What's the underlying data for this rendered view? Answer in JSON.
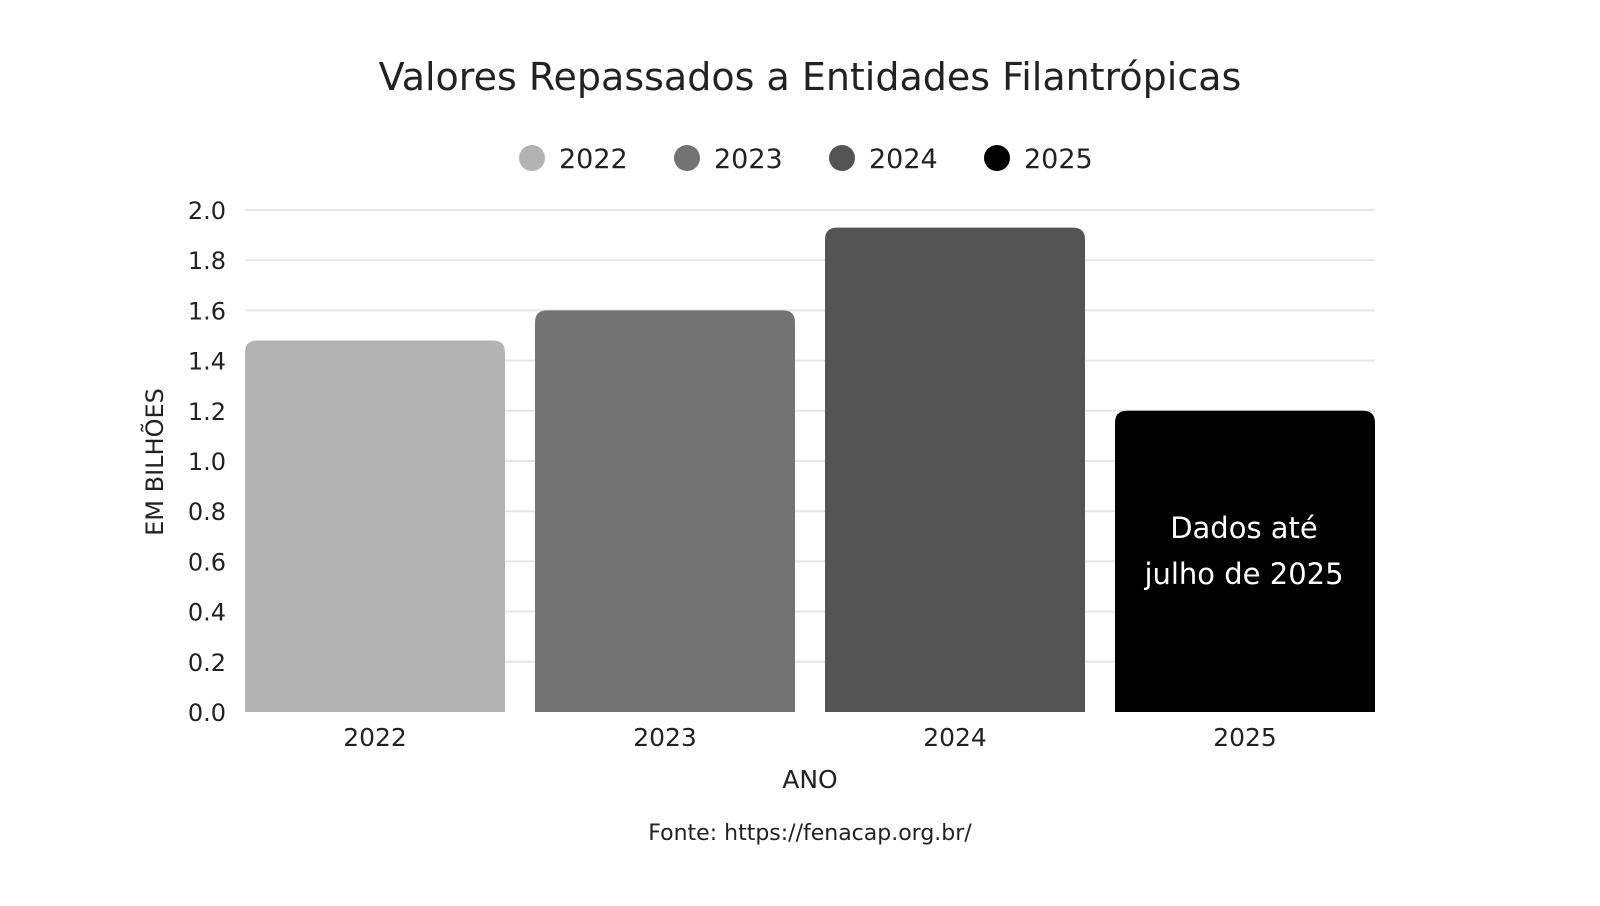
{
  "chart_data": {
    "type": "bar",
    "title": "Valores Repassados a Entidades Filantrópicas",
    "categories": [
      "2022",
      "2023",
      "2024",
      "2025"
    ],
    "values": [
      1.48,
      1.6,
      1.93,
      1.2
    ],
    "colors": [
      "#b3b3b3",
      "#737373",
      "#545454",
      "#000000"
    ],
    "legend": [
      "2022",
      "2023",
      "2024",
      "2025"
    ],
    "legend_position": "top-center",
    "xlabel": "ANO",
    "ylabel": "EM BILHÕES",
    "ylim": [
      0,
      2.0
    ],
    "yticks": [
      "0.0",
      "0.2",
      "0.4",
      "0.6",
      "0.8",
      "1.0",
      "1.2",
      "1.4",
      "1.6",
      "1.8",
      "2.0"
    ],
    "grid": true,
    "annotation": [
      "Dados até",
      "julho de 2025"
    ],
    "source": "Fonte: https://fenacap.org.br/"
  }
}
